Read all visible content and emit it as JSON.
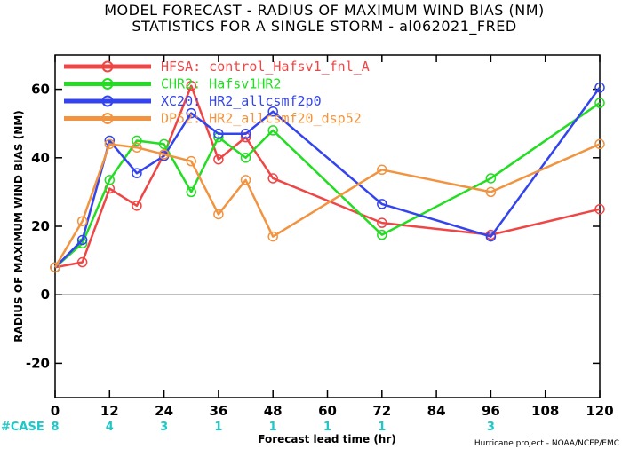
{
  "chart_data": {
    "type": "line",
    "title": "MODEL FORECAST - RADIUS OF MAXIMUM WIND BIAS (NM)",
    "subtitle": "STATISTICS FOR A SINGLE STORM - al062021_FRED",
    "xlabel": "Forecast lead time (hr)",
    "ylabel": "RADIUS OF MAXIMUM WIND BIAS (NM)",
    "xlim": [
      0,
      120
    ],
    "ylim": [
      -30,
      70
    ],
    "xticks": [
      0,
      12,
      24,
      36,
      48,
      60,
      72,
      84,
      96,
      108,
      120
    ],
    "yticks": [
      -20,
      0,
      20,
      40,
      60
    ],
    "grid": false,
    "legend_position": "top-left",
    "credit": "Hurricane project - NOAA/NCEP/EMC",
    "case_label": "#CASE",
    "cases": [
      {
        "x": 0,
        "n": "8"
      },
      {
        "x": 12,
        "n": "4"
      },
      {
        "x": 24,
        "n": "3"
      },
      {
        "x": 36,
        "n": "1"
      },
      {
        "x": 48,
        "n": "1"
      },
      {
        "x": 60,
        "n": "1"
      },
      {
        "x": 72,
        "n": "1"
      },
      {
        "x": 96,
        "n": "3"
      }
    ],
    "series": [
      {
        "name": "HFSA: control_Hafsv1_fnl_A",
        "color": "#f04545",
        "x": [
          0,
          6,
          12,
          18,
          24,
          30,
          36,
          42,
          48,
          72,
          96,
          120
        ],
        "y": [
          8,
          9.5,
          31,
          26,
          41,
          61,
          39.5,
          46,
          34,
          21,
          17.5,
          25
        ]
      },
      {
        "name": "CHR2: Hafsv1HR2",
        "color": "#22dd22",
        "x": [
          0,
          6,
          12,
          18,
          24,
          30,
          36,
          42,
          48,
          72,
          96,
          120
        ],
        "y": [
          8,
          15,
          33.5,
          45,
          44,
          30,
          46,
          40,
          48,
          17.5,
          34,
          56
        ]
      },
      {
        "name": "XC20: HR2_allcsmf2p0",
        "color": "#3344ee",
        "x": [
          0,
          6,
          12,
          18,
          24,
          30,
          36,
          42,
          48,
          72,
          96,
          120
        ],
        "y": [
          8,
          16,
          45,
          35.5,
          40.5,
          53,
          47,
          47,
          53.5,
          26.5,
          17,
          60.5
        ]
      },
      {
        "name": "DP52: HR2_allcsmf20_dsp52",
        "color": "#f29340",
        "x": [
          0,
          6,
          12,
          18,
          24,
          30,
          36,
          42,
          48,
          72,
          96,
          120
        ],
        "y": [
          8,
          21.5,
          44,
          43,
          41,
          39,
          23.5,
          33.5,
          17,
          36.5,
          30,
          44
        ]
      }
    ]
  }
}
